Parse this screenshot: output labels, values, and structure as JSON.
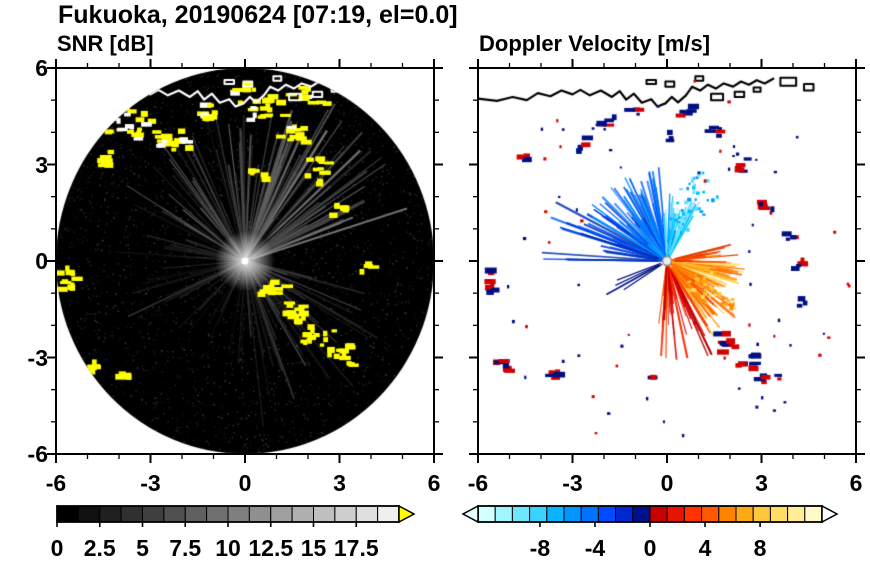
{
  "title": "Fukuoka, 20190624 [07:19, el=0.0]",
  "coastline": [
    [
      -6,
      5.05
    ],
    [
      -5.4,
      4.98
    ],
    [
      -4.9,
      5.1
    ],
    [
      -4.45,
      5.0
    ],
    [
      -4.1,
      5.22
    ],
    [
      -3.7,
      5.12
    ],
    [
      -3.35,
      5.3
    ],
    [
      -3.0,
      5.18
    ],
    [
      -2.75,
      5.32
    ],
    [
      -2.45,
      5.15
    ],
    [
      -2.1,
      5.3
    ],
    [
      -1.75,
      5.1
    ],
    [
      -1.5,
      5.28
    ],
    [
      -1.3,
      5.02
    ],
    [
      -1.05,
      5.2
    ],
    [
      -0.8,
      4.92
    ],
    [
      -0.5,
      5.03
    ],
    [
      -0.3,
      4.8
    ],
    [
      -0.05,
      4.9
    ],
    [
      0.15,
      5.1
    ],
    [
      0.35,
      4.93
    ],
    [
      0.6,
      5.15
    ],
    [
      0.8,
      5.42
    ],
    [
      1.05,
      5.3
    ],
    [
      1.3,
      5.48
    ],
    [
      1.55,
      5.36
    ],
    [
      1.8,
      5.52
    ],
    [
      2.1,
      5.42
    ],
    [
      2.35,
      5.58
    ],
    [
      2.6,
      5.48
    ],
    [
      2.85,
      5.62
    ],
    [
      3.1,
      5.52
    ],
    [
      3.4,
      5.68
    ]
  ],
  "structures": [
    [
      1.4,
      5.0,
      0.38,
      0.2
    ],
    [
      2.15,
      5.1,
      0.3,
      0.16
    ],
    [
      -0.05,
      5.42,
      0.28,
      0.16
    ],
    [
      2.75,
      5.26,
      0.22,
      0.13
    ],
    [
      -0.65,
      5.5,
      0.3,
      0.13
    ],
    [
      0.9,
      5.6,
      0.25,
      0.14
    ],
    [
      3.6,
      5.45,
      0.5,
      0.25
    ],
    [
      4.35,
      5.3,
      0.3,
      0.2
    ]
  ],
  "chart_data": [
    {
      "id": "snr",
      "type": "heatmap",
      "subtype": "radar-ppi",
      "title": "SNR [dB]",
      "units": "dB",
      "xlim": [
        -6,
        6
      ],
      "ylim": [
        -6,
        6
      ],
      "xticks": [
        -6,
        -3,
        0,
        3,
        6
      ],
      "xtick_labels": [
        "-6",
        "-3",
        "0",
        "3",
        "6"
      ],
      "yticks": [
        -6,
        -3,
        0,
        3,
        6
      ],
      "ytick_labels": [
        "-6",
        "-3",
        "0",
        "3",
        "6"
      ],
      "minor_step": 1,
      "show_y_labels": true,
      "scan_radius": 6,
      "clip_to_scan": true,
      "inside_color": "#000000",
      "outside_color": "#ffffff",
      "coast": true,
      "coast_color": "#ffffff",
      "coast_first": false,
      "echo_color": "#ffff00",
      "echo_white_mix": 0.2,
      "seed": 24061907,
      "speckle": {
        "count": 2400,
        "gray": true,
        "rmin": 0,
        "rmax": 6
      },
      "center_glow": true,
      "center_dot": {
        "color": "#ffffff",
        "r": 3.5
      },
      "beam_fans": [
        {
          "az": [
            15,
            75
          ],
          "count": 60,
          "len": [
            1.5,
            5.7
          ],
          "width": [
            1,
            2.6
          ],
          "grays": [
            45,
            125
          ],
          "alpha": [
            0.5,
            1
          ]
        },
        {
          "az": [
            75,
            150
          ],
          "count": 50,
          "len": [
            1.2,
            5.2
          ],
          "width": [
            1,
            2.2
          ],
          "grays": [
            30,
            105
          ],
          "alpha": [
            0.4,
            0.95
          ]
        },
        {
          "az": [
            150,
            205
          ],
          "count": 20,
          "len": [
            1,
            4.2
          ],
          "width": [
            1,
            2
          ],
          "grays": [
            20,
            70
          ],
          "alpha": [
            0.35,
            0.8
          ]
        },
        {
          "az": [
            205,
            265
          ],
          "count": 16,
          "len": [
            1,
            3.6
          ],
          "width": [
            1,
            2
          ],
          "grays": [
            18,
            55
          ],
          "alpha": [
            0.3,
            0.7
          ]
        },
        {
          "az": [
            265,
            352
          ],
          "count": 40,
          "len": [
            1.2,
            5.2
          ],
          "width": [
            1,
            2.2
          ],
          "grays": [
            25,
            85
          ],
          "alpha": [
            0.35,
            0.85
          ]
        },
        {
          "az": [
            15,
            160
          ],
          "count": 12,
          "len": [
            3,
            5.8
          ],
          "width": [
            1.4,
            2.4
          ],
          "grays": [
            0,
            12
          ],
          "alpha": [
            0.75,
            1
          ]
        }
      ],
      "echo_clusters": [
        {
          "x": -3.6,
          "y": 4.25,
          "rx": 1.0,
          "ry": 0.55,
          "n": 24
        },
        {
          "x": -2.3,
          "y": 3.7,
          "rx": 0.7,
          "ry": 0.5,
          "n": 16
        },
        {
          "x": -4.6,
          "y": 3.15,
          "rx": 0.45,
          "ry": 0.3,
          "n": 7
        },
        {
          "x": -1.2,
          "y": 4.55,
          "rx": 0.5,
          "ry": 0.35,
          "n": 9
        },
        {
          "x": 0.6,
          "y": 4.85,
          "rx": 0.9,
          "ry": 0.5,
          "n": 18
        },
        {
          "x": 1.6,
          "y": 4.0,
          "rx": 0.6,
          "ry": 0.5,
          "n": 13
        },
        {
          "x": 2.3,
          "y": 2.8,
          "rx": 0.5,
          "ry": 0.45,
          "n": 11
        },
        {
          "x": 3.0,
          "y": 1.6,
          "rx": 0.3,
          "ry": 0.3,
          "n": 6
        },
        {
          "x": 0.9,
          "y": -0.9,
          "rx": 0.5,
          "ry": 0.4,
          "n": 11
        },
        {
          "x": 1.6,
          "y": -1.6,
          "rx": 0.5,
          "ry": 0.4,
          "n": 13
        },
        {
          "x": 2.3,
          "y": -2.3,
          "rx": 0.6,
          "ry": 0.45,
          "n": 15
        },
        {
          "x": 3.05,
          "y": -2.95,
          "rx": 0.6,
          "ry": 0.4,
          "n": 13
        },
        {
          "x": -5.55,
          "y": -0.6,
          "rx": 0.35,
          "ry": 0.5,
          "n": 11
        },
        {
          "x": -4.9,
          "y": -3.3,
          "rx": 0.4,
          "ry": 0.25,
          "n": 7
        },
        {
          "x": -3.9,
          "y": -3.5,
          "rx": 0.3,
          "ry": 0.2,
          "n": 5
        },
        {
          "x": 3.9,
          "y": -0.2,
          "rx": 0.25,
          "ry": 0.2,
          "n": 4
        },
        {
          "x": 0.45,
          "y": 2.7,
          "rx": 0.3,
          "ry": 0.25,
          "n": 6
        },
        {
          "x": 2.1,
          "y": 5.15,
          "rx": 0.8,
          "ry": 0.35,
          "n": 10
        },
        {
          "x": -0.1,
          "y": 5.3,
          "rx": 0.5,
          "ry": 0.3,
          "n": 7
        }
      ],
      "colorbar": {
        "min": 0,
        "max": 20,
        "step": 1.25,
        "labels": [
          "0",
          "2.5",
          "5",
          "7.5",
          "10",
          "12.5",
          "15",
          "17.5"
        ],
        "label_values": [
          0,
          2.5,
          5,
          7.5,
          10,
          12.5,
          15,
          17.5
        ],
        "ramp": [
          "#000000",
          "#efefef"
        ],
        "over_arrow": "#ffff00"
      }
    },
    {
      "id": "velocity",
      "type": "heatmap",
      "subtype": "radar-ppi",
      "title": "Doppler Velocity [m/s]",
      "units": "m/s",
      "xlim": [
        -6,
        6
      ],
      "ylim": [
        -6,
        6
      ],
      "xticks": [
        -6,
        -3,
        0,
        3,
        6
      ],
      "xtick_labels": [
        "-6",
        "-3",
        "0",
        "3",
        "6"
      ],
      "yticks": [
        -6,
        -3,
        0,
        3,
        6
      ],
      "minor_step": 1,
      "show_y_labels": false,
      "scan_radius": 6,
      "clip_to_scan": false,
      "inside_color": "#ffffff",
      "outside_color": "#ffffff",
      "coast": true,
      "coast_color": "#000000",
      "coast_first": true,
      "seed": 7190624,
      "speckle": {
        "count": 70,
        "colors": [
          "#000f82",
          "#d20000"
        ],
        "rmin": 1.5,
        "rmax": 5.9
      },
      "center_dot": {
        "color": "#ececec",
        "stroke": "#8c8c8c",
        "r": 4.5
      },
      "beam_fans": [
        {
          "az": [
            150,
            180
          ],
          "count": 28,
          "len": [
            1.2,
            4.0
          ],
          "width": [
            1.2,
            2.6
          ],
          "colors": [
            "#0040e0",
            "#0055ff",
            "#1b6cff",
            "#0030b4"
          ],
          "alpha": [
            0.8,
            1
          ]
        },
        {
          "az": [
            95,
            150
          ],
          "count": 75,
          "len": [
            0.7,
            3.0
          ],
          "width": [
            1,
            2.2
          ],
          "colors": [
            "#0055ff",
            "#007dff",
            "#00a5ff",
            "#0032c8",
            "#2d7dff"
          ],
          "alpha": [
            0.75,
            1
          ]
        },
        {
          "az": [
            58,
            95
          ],
          "count": 45,
          "len": [
            0.5,
            2.2
          ],
          "width": [
            1,
            2
          ],
          "colors": [
            "#00c8ff",
            "#46d7ff",
            "#0096ff",
            "#8ce6ff"
          ],
          "alpha": [
            0.7,
            1
          ]
        },
        {
          "az": [
            196,
            214
          ],
          "count": 4,
          "len": [
            1,
            2.4
          ],
          "width": [
            1,
            1.8
          ],
          "colors": [
            "#000f82"
          ],
          "alpha": [
            0.9,
            1
          ]
        },
        {
          "az": [
            262,
            302
          ],
          "count": 38,
          "len": [
            0.7,
            3.3
          ],
          "width": [
            1,
            2.2
          ],
          "colors": [
            "#dc0000",
            "#ff2d00",
            "#b40000",
            "#ff5000"
          ],
          "alpha": [
            0.8,
            1
          ]
        },
        {
          "az": [
            302,
            332
          ],
          "count": 65,
          "len": [
            0.7,
            2.8
          ],
          "width": [
            1,
            2.4
          ],
          "colors": [
            "#ff6400",
            "#ff8c00",
            "#ffb232",
            "#ff4600",
            "#ffc850"
          ],
          "alpha": [
            0.8,
            1
          ]
        },
        {
          "az": [
            332,
            358
          ],
          "count": 48,
          "len": [
            0.7,
            2.5
          ],
          "width": [
            1,
            2.2
          ],
          "colors": [
            "#ff9600",
            "#ffc83c",
            "#ffdc64",
            "#ff6e00"
          ],
          "alpha": [
            0.8,
            1
          ]
        },
        {
          "az": [
            358,
            374
          ],
          "count": 18,
          "len": [
            0.7,
            2.3
          ],
          "width": [
            1,
            2
          ],
          "colors": [
            "#ff5000",
            "#ff8200",
            "#e63200"
          ],
          "alpha": [
            0.8,
            1
          ]
        }
      ],
      "scatter_clusters": [
        {
          "x": 0.9,
          "y": 2.1,
          "rx": 0.7,
          "ry": 0.9,
          "n": 30,
          "colors": [
            "#00c8ff",
            "#64dcff",
            "#0096ff"
          ]
        },
        {
          "x": 0.35,
          "y": 1.3,
          "rx": 0.4,
          "ry": 0.5,
          "n": 15,
          "colors": [
            "#00b4ff",
            "#46d7ff"
          ]
        },
        {
          "x": 1.1,
          "y": -0.7,
          "rx": 0.6,
          "ry": 0.5,
          "n": 25,
          "colors": [
            "#ffc83c",
            "#ffa000",
            "#ffdc64"
          ]
        },
        {
          "x": 1.9,
          "y": -1.3,
          "rx": 0.5,
          "ry": 0.4,
          "n": 15,
          "colors": [
            "#ff8c00",
            "#ffb232"
          ]
        }
      ],
      "echo_clusters": [
        {
          "x": -5.6,
          "y": -0.7,
          "rx": 0.35,
          "ry": 0.5,
          "n": 9,
          "colors": [
            "#000f82",
            "#d20000"
          ]
        },
        {
          "x": -5.1,
          "y": -3.2,
          "rx": 0.4,
          "ry": 0.3,
          "n": 7,
          "colors": [
            "#000f82",
            "#d20000"
          ]
        },
        {
          "x": -3.6,
          "y": -3.5,
          "rx": 0.3,
          "ry": 0.2,
          "n": 5,
          "colors": [
            "#000f82",
            "#d20000"
          ]
        },
        {
          "x": 1.9,
          "y": -2.6,
          "rx": 0.5,
          "ry": 0.4,
          "n": 9,
          "colors": [
            "#000f82",
            "#d20000"
          ]
        },
        {
          "x": 2.6,
          "y": -3.1,
          "rx": 0.5,
          "ry": 0.4,
          "n": 9,
          "colors": [
            "#000f82",
            "#d20000"
          ]
        },
        {
          "x": 3.2,
          "y": -3.6,
          "rx": 0.4,
          "ry": 0.3,
          "n": 6,
          "colors": [
            "#000f82",
            "#d20000"
          ]
        },
        {
          "x": 2.4,
          "y": 2.9,
          "rx": 0.35,
          "ry": 0.35,
          "n": 5,
          "colors": [
            "#000f82",
            "#d20000"
          ]
        },
        {
          "x": 3.2,
          "y": 1.7,
          "rx": 0.3,
          "ry": 0.3,
          "n": 5,
          "colors": [
            "#000f82",
            "#d20000"
          ]
        },
        {
          "x": 3.9,
          "y": 0.8,
          "rx": 0.25,
          "ry": 0.25,
          "n": 4,
          "colors": [
            "#000f82",
            "#d20000"
          ]
        },
        {
          "x": 4.2,
          "y": -0.1,
          "rx": 0.25,
          "ry": 0.2,
          "n": 4,
          "colors": [
            "#000f82",
            "#d20000"
          ]
        },
        {
          "x": -2.7,
          "y": 3.6,
          "rx": 0.3,
          "ry": 0.25,
          "n": 4,
          "colors": [
            "#000f82",
            "#d20000"
          ]
        },
        {
          "x": -1.9,
          "y": 4.4,
          "rx": 0.3,
          "ry": 0.25,
          "n": 4,
          "colors": [
            "#000f82",
            "#d20000"
          ]
        },
        {
          "x": -1.0,
          "y": 4.6,
          "rx": 0.25,
          "ry": 0.2,
          "n": 3,
          "colors": [
            "#000f82",
            "#d20000"
          ]
        },
        {
          "x": 0.6,
          "y": 4.7,
          "rx": 0.35,
          "ry": 0.25,
          "n": 5,
          "colors": [
            "#000f82",
            "#d20000"
          ]
        },
        {
          "x": 1.6,
          "y": 4.0,
          "rx": 0.35,
          "ry": 0.3,
          "n": 5,
          "colors": [
            "#000f82",
            "#d20000"
          ]
        },
        {
          "x": -4.5,
          "y": 3.2,
          "rx": 0.25,
          "ry": 0.2,
          "n": 3,
          "colors": [
            "#000f82",
            "#d20000"
          ]
        },
        {
          "x": 0.1,
          "y": 3.85,
          "rx": 0.25,
          "ry": 0.2,
          "n": 3,
          "colors": [
            "#000f82",
            "#d20000"
          ]
        },
        {
          "x": 4.3,
          "y": -1.3,
          "rx": 0.25,
          "ry": 0.2,
          "n": 3,
          "colors": [
            "#000f82",
            "#d20000"
          ]
        },
        {
          "x": -0.3,
          "y": -3.6,
          "rx": 0.2,
          "ry": 0.15,
          "n": 2,
          "colors": [
            "#000f82",
            "#d20000"
          ]
        }
      ],
      "colorbar": {
        "min": -12.5,
        "max": 12.5,
        "labels": [
          "-8",
          "-4",
          "0",
          "4",
          "8"
        ],
        "label_values": [
          -8,
          -4,
          0,
          4,
          8
        ],
        "segments": [
          "#d2ffff",
          "#a0f5ff",
          "#6ee6ff",
          "#3cd2ff",
          "#0ab4ff",
          "#0096ff",
          "#0073ff",
          "#004bff",
          "#0028d2",
          "#000f8c",
          "#c80000",
          "#e61400",
          "#ff3200",
          "#ff5a00",
          "#ff8200",
          "#ffaa14",
          "#ffc83c",
          "#ffdc64",
          "#ffee96",
          "#fffac8"
        ],
        "under_arrow": "#e6ffff",
        "over_arrow": "#ffffff"
      }
    }
  ]
}
